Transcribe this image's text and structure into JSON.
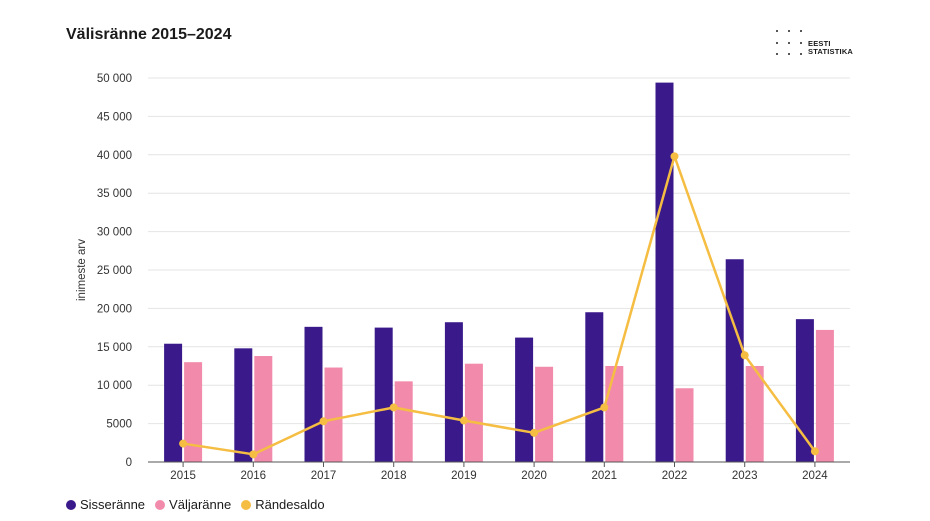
{
  "title": "Välisränne 2015–2024",
  "logo": {
    "line1": "EESTI",
    "line2": "STATISTIKA"
  },
  "colors": {
    "sisseranne": "#3a1a8a",
    "valjaranne": "#f28bab",
    "randesaldo": "#f5bd42"
  },
  "chart_data": {
    "type": "bar",
    "title": "Välisränne 2015–2024",
    "xlabel": "",
    "ylabel": "inimeste arv",
    "ylim": [
      0,
      50000
    ],
    "yticks": [
      0,
      5000,
      10000,
      15000,
      20000,
      25000,
      30000,
      35000,
      40000,
      45000,
      50000
    ],
    "ytick_labels": [
      "0",
      "5000",
      "10 000",
      "15 000",
      "20 000",
      "25 000",
      "30 000",
      "35 000",
      "40 000",
      "45 000",
      "50 000"
    ],
    "categories": [
      "2015",
      "2016",
      "2017",
      "2018",
      "2019",
      "2020",
      "2021",
      "2022",
      "2023",
      "2024"
    ],
    "series": [
      {
        "name": "Sisseränne",
        "kind": "bar",
        "color": "#3a1a8a",
        "values": [
          15400,
          14800,
          17600,
          17500,
          18200,
          16200,
          19500,
          49400,
          26400,
          18600
        ]
      },
      {
        "name": "Väljaränne",
        "kind": "bar",
        "color": "#f28bab",
        "values": [
          13000,
          13800,
          12300,
          10500,
          12800,
          12400,
          12500,
          9600,
          12500,
          17200
        ]
      },
      {
        "name": "Rändesaldo",
        "kind": "line",
        "color": "#f5bd42",
        "values": [
          2400,
          1000,
          5300,
          7100,
          5400,
          3800,
          7100,
          39800,
          13900,
          1400
        ]
      }
    ],
    "grid": true,
    "legend": "bottom-left"
  }
}
